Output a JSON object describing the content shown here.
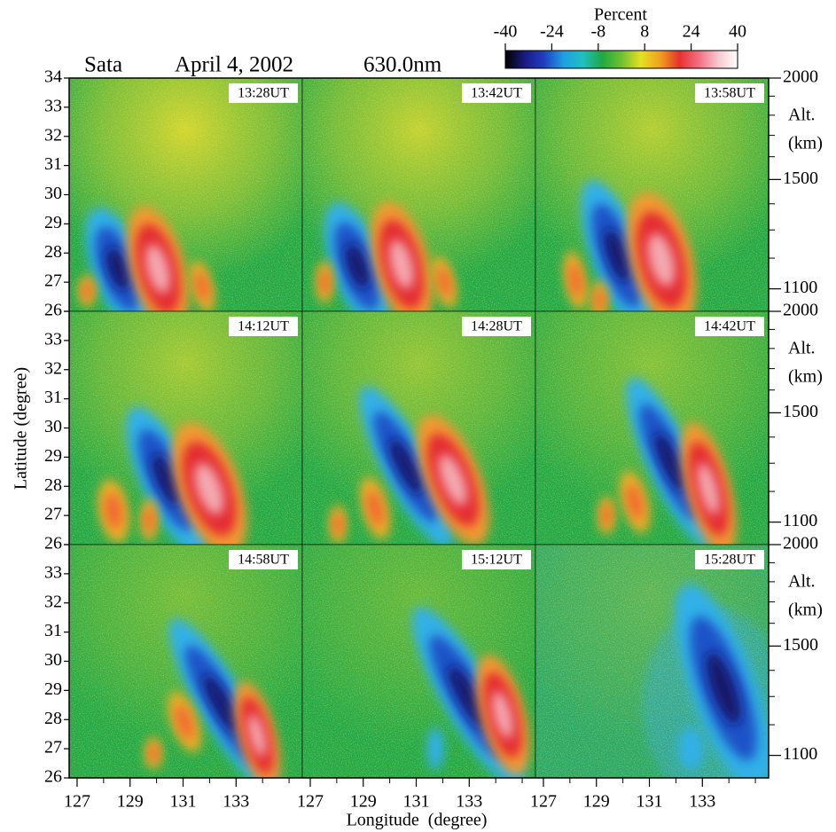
{
  "chart_data": {
    "type": "image",
    "site": "Sata",
    "date": "April 4, 2002",
    "wavelength": "630.0nm",
    "xlabel": "Longitude  (degree)",
    "ylabel": "Latitude  (degree)",
    "y2label_lines": [
      "Alt.",
      "(km)"
    ],
    "panels": [
      "13:28UT",
      "13:42UT",
      "13:58UT",
      "14:12UT",
      "14:28UT",
      "14:42UT",
      "14:58UT",
      "15:12UT",
      "15:28UT"
    ],
    "xlim": [
      126.7,
      135.5
    ],
    "xticks": [
      127,
      129,
      131,
      133
    ],
    "xminorticks": [
      128,
      130,
      132,
      134,
      135
    ],
    "ylim": [
      26,
      34
    ],
    "yticks": [
      26,
      27,
      28,
      29,
      30,
      31,
      32,
      33,
      34
    ],
    "y2lim": [
      1032,
      2000
    ],
    "y2scale": "log",
    "y2ticks": [
      1100,
      1500,
      2000
    ],
    "y2minorticks": [
      1200,
      1300,
      1400,
      1600,
      1700,
      1800,
      1900
    ],
    "colorbar": {
      "label": "Percent",
      "lim": [
        -40,
        40
      ],
      "ticks": [
        -40,
        -24,
        -8,
        8,
        24,
        40
      ],
      "colors": [
        "#000000",
        "#1a1a80",
        "#1f3fc0",
        "#1f9fe0",
        "#20c0c0",
        "#20a840",
        "#70c030",
        "#e8e020",
        "#f0a020",
        "#e83030",
        "#f07080",
        "#f8c8d0",
        "#ffffff"
      ]
    }
  }
}
